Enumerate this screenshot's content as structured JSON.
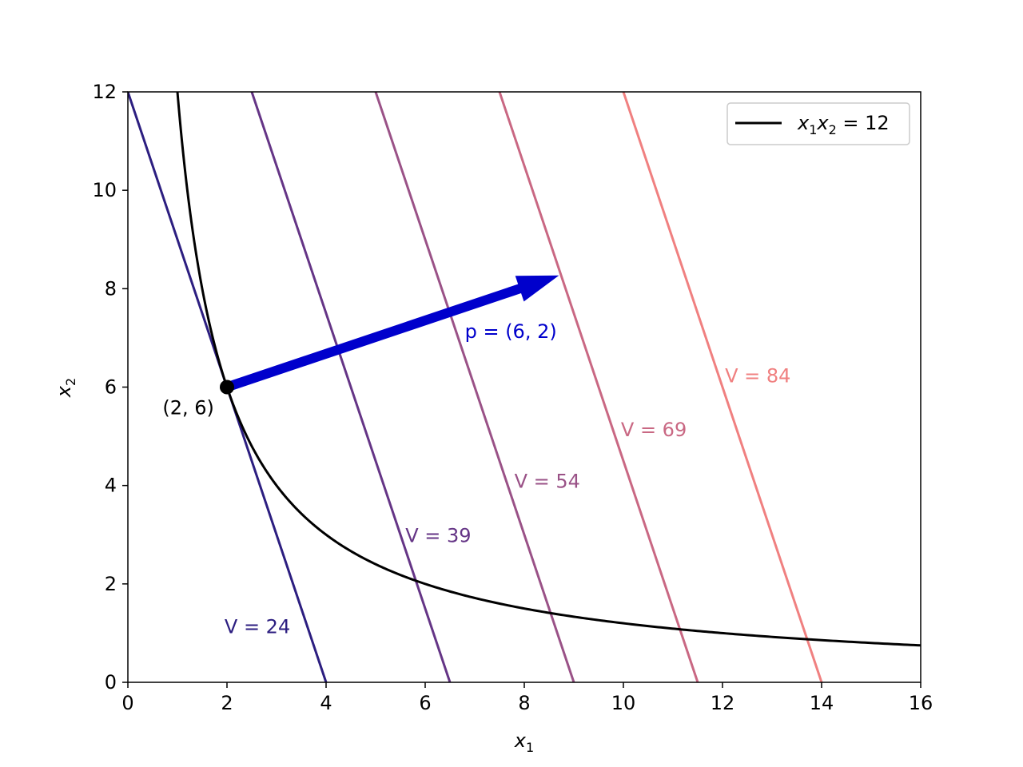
{
  "chart_data": {
    "type": "line",
    "title": "",
    "xlabel": "x",
    "xlabel_sub": "1",
    "ylabel": "x",
    "ylabel_sub": "2",
    "xlim": [
      0,
      16
    ],
    "ylim": [
      0,
      12
    ],
    "x_ticks": [
      "0",
      "2",
      "4",
      "6",
      "8",
      "10",
      "12",
      "14",
      "16"
    ],
    "y_ticks": [
      "0",
      "2",
      "4",
      "6",
      "8",
      "10",
      "12"
    ],
    "grid": false,
    "legend_placement": "top-right",
    "legend": {
      "x1": "x",
      "sub1": "1",
      "x2": "x",
      "sub2": "2",
      "rhs": " = 12",
      "color": "#000000"
    },
    "curve": {
      "name": "x1x2 = 12",
      "k": 12,
      "x_start": 1,
      "x_end": 16,
      "color": "#000000"
    },
    "level_lines": [
      {
        "V": 24,
        "label": "V = 24",
        "label_at": [
          1.95,
          1.0
        ],
        "color": "#2c1e80"
      },
      {
        "V": 39,
        "label": "V = 39",
        "label_at": [
          5.6,
          2.85
        ],
        "color": "#653586"
      },
      {
        "V": 54,
        "label": "V = 54",
        "label_at": [
          7.8,
          3.95
        ],
        "color": "#9a5287"
      },
      {
        "V": 69,
        "label": "V = 69",
        "label_at": [
          9.95,
          5.0
        ],
        "color": "#c96883"
      },
      {
        "V": 84,
        "label": "V = 84",
        "label_at": [
          12.05,
          6.1
        ],
        "color": "#f08080"
      }
    ],
    "price_vector": {
      "p": [
        6,
        2
      ],
      "from": [
        2,
        6
      ],
      "to": [
        8.7,
        8.27
      ],
      "label": "p = (6, 2)",
      "label_at": [
        6.8,
        7.0
      ],
      "color": "#0000cc"
    },
    "point": {
      "x": 2,
      "y": 6,
      "label": "(2, 6)",
      "label_at": [
        0.7,
        5.45
      ],
      "color": "#000000"
    }
  }
}
